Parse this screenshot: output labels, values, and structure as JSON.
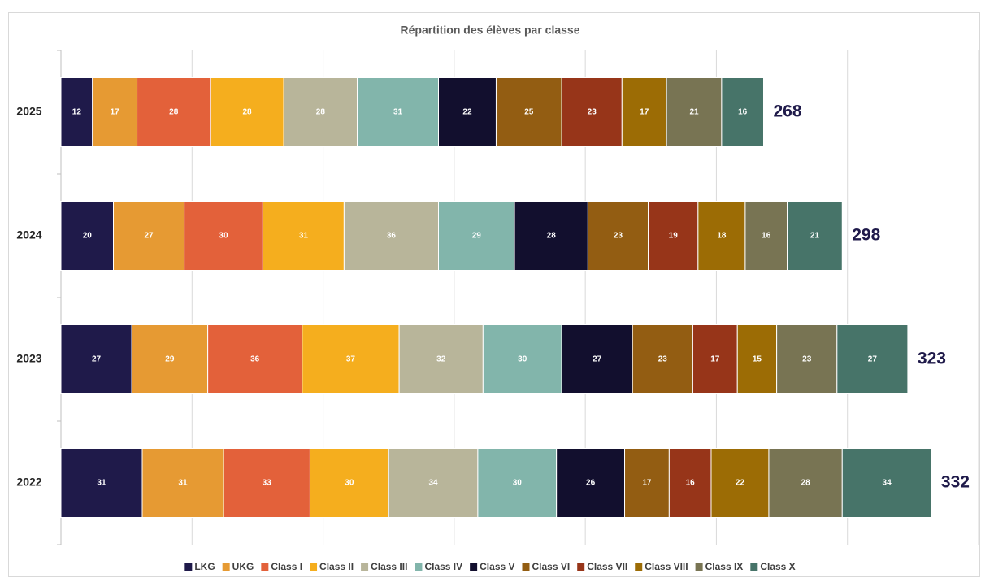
{
  "chart_data": {
    "type": "stacked_bar_horizontal",
    "title": "Répartition des élèves par classe",
    "categories": [
      "2025",
      "2024",
      "2023",
      "2022"
    ],
    "series": [
      {
        "name": "LKG",
        "color": "#1f1a4a",
        "values": [
          12,
          20,
          27,
          31
        ]
      },
      {
        "name": "UKG",
        "color": "#e69a33",
        "values": [
          17,
          27,
          29,
          31
        ]
      },
      {
        "name": "Class I",
        "color": "#e3613a",
        "values": [
          28,
          30,
          36,
          33
        ]
      },
      {
        "name": "Class II",
        "color": "#f5ae1e",
        "values": [
          28,
          31,
          37,
          30
        ]
      },
      {
        "name": "Class III",
        "color": "#b8b59a",
        "values": [
          28,
          36,
          32,
          34
        ]
      },
      {
        "name": "Class IV",
        "color": "#82b5ab",
        "values": [
          31,
          29,
          30,
          30
        ]
      },
      {
        "name": "Class V",
        "color": "#120f2e",
        "values": [
          22,
          28,
          27,
          26
        ]
      },
      {
        "name": "Class VI",
        "color": "#935d12",
        "values": [
          25,
          23,
          23,
          17
        ]
      },
      {
        "name": "Class VII",
        "color": "#973519",
        "values": [
          23,
          19,
          17,
          16
        ]
      },
      {
        "name": "Class VIII",
        "color": "#9c6c05",
        "values": [
          17,
          18,
          15,
          22
        ]
      },
      {
        "name": "Class IX",
        "color": "#787453",
        "values": [
          21,
          16,
          23,
          28
        ]
      },
      {
        "name": "Class X",
        "color": "#477469",
        "values": [
          16,
          21,
          27,
          34
        ]
      }
    ],
    "totals": [
      268,
      298,
      323,
      332
    ],
    "xlim": [
      0,
      350
    ],
    "xticks": [
      0,
      50,
      100,
      150,
      200,
      250,
      300,
      350
    ],
    "grid": true,
    "legend": "bottom"
  }
}
